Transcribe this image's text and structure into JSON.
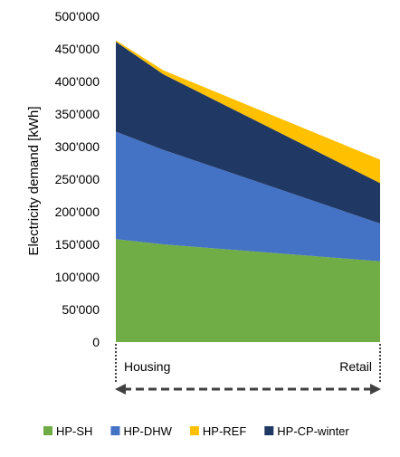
{
  "chart_data": {
    "type": "area",
    "stacked": true,
    "ylabel": "Electricity demand [kWh]",
    "xlabel": "",
    "title": "",
    "ylim": [
      0,
      500000
    ],
    "yticks": [
      0,
      50000,
      100000,
      150000,
      200000,
      250000,
      300000,
      350000,
      400000,
      450000,
      500000
    ],
    "ytick_labels": [
      "0",
      "50'000",
      "100'000",
      "150'000",
      "200'000",
      "250'000",
      "300'000",
      "350'000",
      "400'000",
      "450'000",
      "500'000"
    ],
    "grid": false,
    "x": [
      0,
      0.18,
      1
    ],
    "categories": [
      "Housing",
      "Retail"
    ],
    "legend_position": "bottom",
    "series": [
      {
        "name": "HP-SH",
        "color": "#70ad47",
        "values": [
          158000,
          150000,
          124000
        ]
      },
      {
        "name": "HP-DHW",
        "color": "#4472c4",
        "values": [
          165000,
          145000,
          58000
        ]
      },
      {
        "name": "HP-CP-winter",
        "color": "#203864",
        "values": [
          138000,
          116000,
          62000
        ]
      },
      {
        "name": "HP-REF",
        "color": "#ffc000",
        "values": [
          2000,
          6000,
          36000
        ]
      }
    ],
    "legend_order": [
      "HP-SH",
      "HP-DHW",
      "HP-REF",
      "HP-CP-winter"
    ]
  }
}
